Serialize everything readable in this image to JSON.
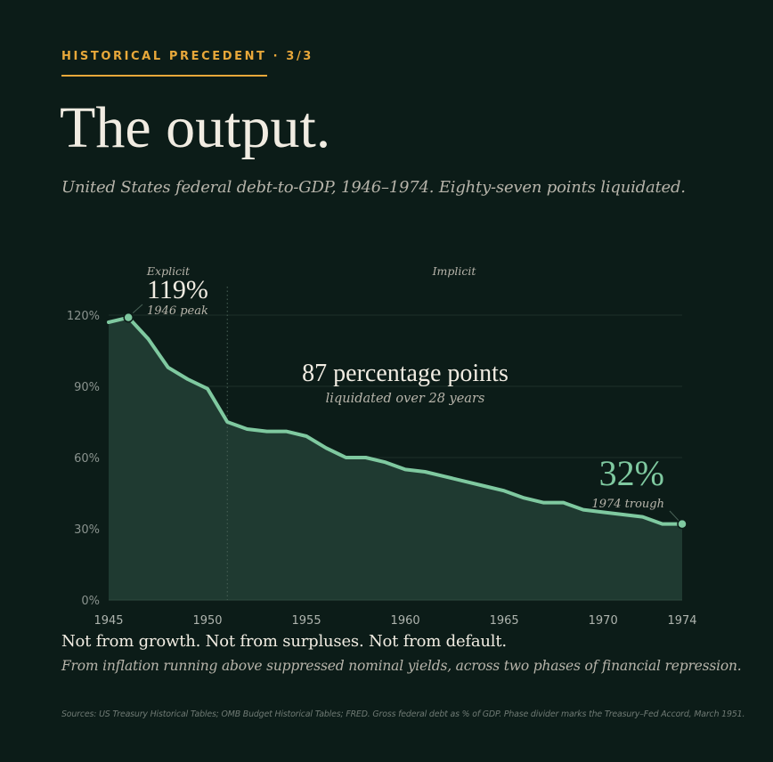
{
  "header": {
    "eyebrow": "HISTORICAL PRECEDENT · 3/3",
    "title": "The output.",
    "subtitle": "United States federal debt-to-GDP, 1946–1974. Eighty-seven points liquidated."
  },
  "chart_data": {
    "type": "area",
    "x": [
      1945,
      1946,
      1947,
      1948,
      1949,
      1950,
      1951,
      1952,
      1953,
      1954,
      1955,
      1956,
      1957,
      1958,
      1959,
      1960,
      1961,
      1962,
      1963,
      1964,
      1965,
      1966,
      1967,
      1968,
      1969,
      1970,
      1971,
      1972,
      1973,
      1974
    ],
    "y": [
      117,
      119,
      110,
      98,
      93,
      89,
      75,
      72,
      71,
      71,
      69,
      64,
      60,
      60,
      58,
      55,
      54,
      52,
      50,
      48,
      46,
      43,
      41,
      41,
      38,
      37,
      36,
      35,
      32,
      32
    ],
    "xlim": [
      1945,
      1974
    ],
    "ylim": [
      0,
      120
    ],
    "y_ticks": [
      0,
      30,
      60,
      90,
      120
    ],
    "y_tick_labels": [
      "0%",
      "30%",
      "60%",
      "90%",
      "120%"
    ],
    "x_ticks": [
      1945,
      1950,
      1955,
      1960,
      1965,
      1970,
      1974
    ],
    "x_tick_labels": [
      "1945",
      "1950",
      "1955",
      "1960",
      "1965",
      "1970",
      "1974"
    ],
    "grid": true,
    "phase_divider_year": 1951,
    "phases": [
      {
        "label": "Explicit"
      },
      {
        "label": "Implicit"
      }
    ],
    "annotations": {
      "peak": {
        "year": 1946,
        "value_label": "119%",
        "caption": "1946 peak"
      },
      "trough": {
        "year": 1974,
        "value_label": "32%",
        "caption": "1974 trough"
      },
      "center": {
        "headline": "87 percentage points",
        "caption": "liquidated over 28 years"
      }
    },
    "colors": {
      "line": "#7fc9a0",
      "fill": "#1f3a31",
      "grid": "#1e302a",
      "axis_text": "#8a938e",
      "trough_value": "#7fc9a0"
    }
  },
  "footer": {
    "main": "Not from growth. Not from surpluses. Not from default.",
    "sub": "From inflation running above suppressed nominal yields, across two phases of financial repression.",
    "sources": "Sources: US Treasury Historical Tables; OMB Budget Historical Tables; FRED. Gross federal debt as % of GDP. Phase divider marks the Treasury–Fed Accord, March 1951."
  }
}
